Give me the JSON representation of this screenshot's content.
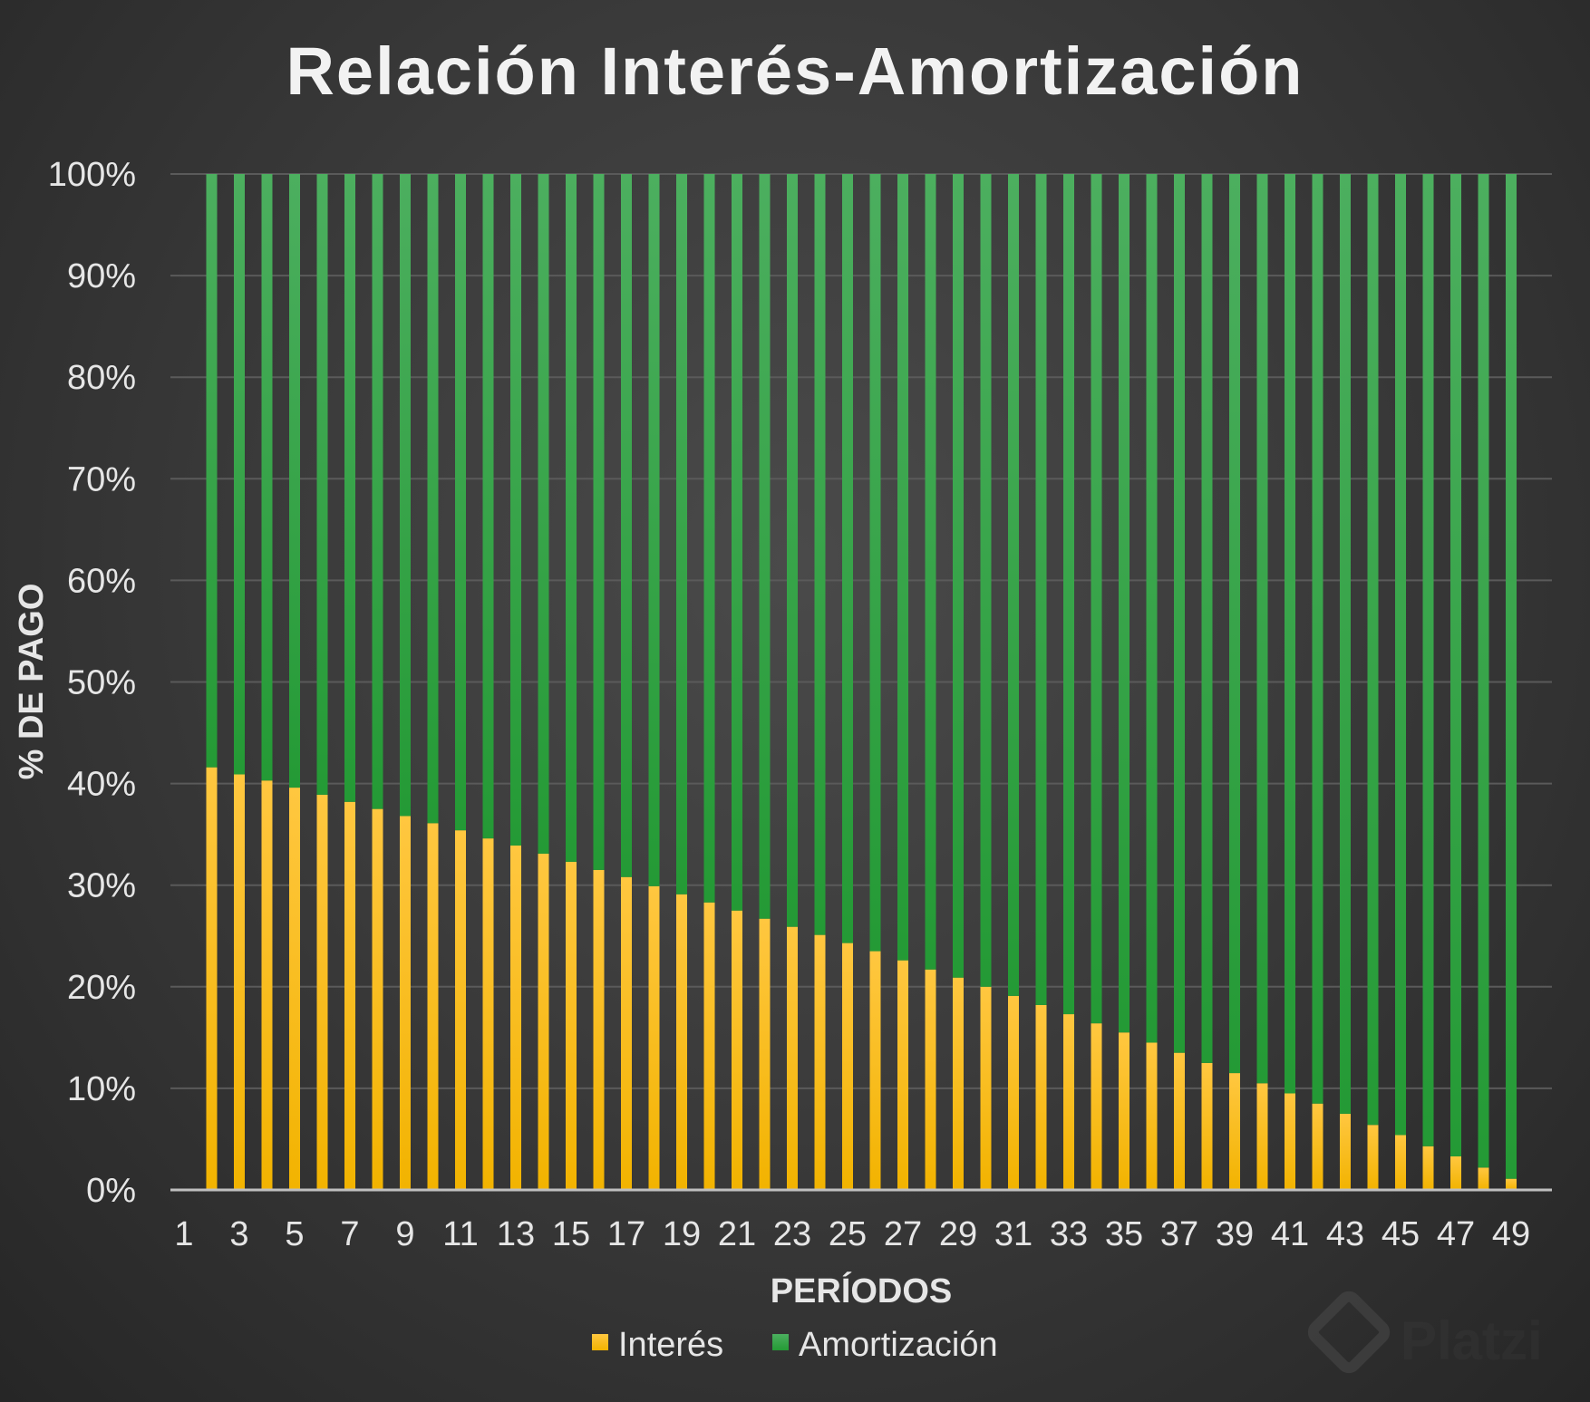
{
  "chart_data": {
    "type": "bar",
    "stacked": true,
    "title": "Relación Interés-Amortización",
    "xlabel": "PERÍODOS",
    "ylabel": "% DE PAGO",
    "ylim": [
      0,
      100
    ],
    "y_ticks": [
      "0%",
      "10%",
      "20%",
      "30%",
      "40%",
      "50%",
      "60%",
      "70%",
      "80%",
      "90%",
      "100%"
    ],
    "x_tick_labels": [
      "1",
      "3",
      "5",
      "7",
      "9",
      "11",
      "13",
      "15",
      "17",
      "19",
      "21",
      "23",
      "25",
      "27",
      "29",
      "31",
      "33",
      "35",
      "37",
      "39",
      "41",
      "43",
      "45",
      "47",
      "49"
    ],
    "categories": [
      2,
      3,
      4,
      5,
      6,
      7,
      8,
      9,
      10,
      11,
      12,
      13,
      14,
      15,
      16,
      17,
      18,
      19,
      20,
      21,
      22,
      23,
      24,
      25,
      26,
      27,
      28,
      29,
      30,
      31,
      32,
      33,
      34,
      35,
      36,
      37,
      38,
      39,
      40,
      41,
      42,
      43,
      44,
      45,
      46,
      47,
      48,
      49
    ],
    "series": [
      {
        "name": "Interés",
        "color": "#f5b800",
        "values": [
          41.6,
          40.9,
          40.3,
          39.6,
          38.9,
          38.2,
          37.5,
          36.8,
          36.1,
          35.4,
          34.6,
          33.9,
          33.1,
          32.3,
          31.5,
          30.8,
          29.9,
          29.1,
          28.3,
          27.5,
          26.7,
          25.9,
          25.1,
          24.3,
          23.5,
          22.6,
          21.7,
          20.9,
          20.0,
          19.1,
          18.2,
          17.3,
          16.4,
          15.5,
          14.5,
          13.5,
          12.5,
          11.5,
          10.5,
          9.5,
          8.5,
          7.5,
          6.4,
          5.4,
          4.3,
          3.3,
          2.2,
          1.1
        ]
      },
      {
        "name": "Amortización",
        "color": "#2e9b3c",
        "values": [
          58.4,
          59.1,
          59.7,
          60.4,
          61.1,
          61.8,
          62.5,
          63.2,
          63.9,
          64.6,
          65.4,
          66.1,
          66.9,
          67.7,
          68.5,
          69.2,
          70.1,
          70.9,
          71.7,
          72.5,
          73.3,
          74.1,
          74.9,
          75.7,
          76.5,
          77.4,
          78.3,
          79.1,
          80.0,
          80.9,
          81.8,
          82.7,
          83.6,
          84.5,
          85.5,
          86.5,
          87.5,
          88.5,
          89.5,
          90.5,
          91.5,
          92.5,
          93.6,
          94.6,
          95.7,
          96.7,
          97.8,
          98.9
        ]
      }
    ],
    "legend": "bottom-center"
  },
  "watermark": "Platzi"
}
